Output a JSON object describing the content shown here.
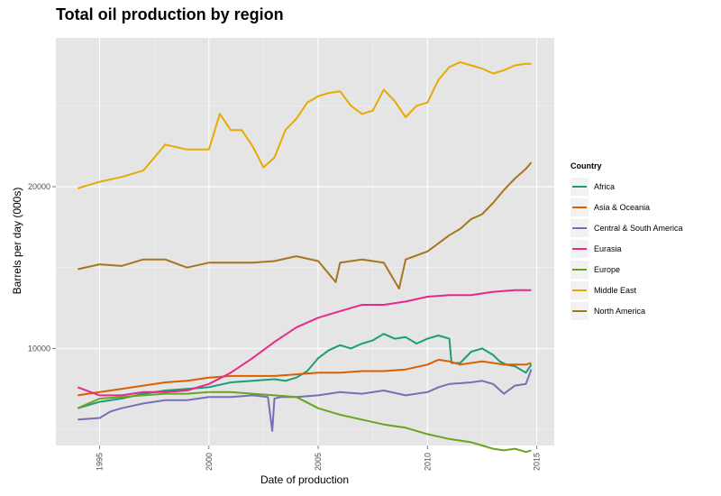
{
  "chart_data": {
    "type": "line",
    "title": "Total oil production by region",
    "xlabel": "Date of production",
    "ylabel": "Barrels per day (000s)",
    "xlim": [
      1993.0,
      2015.8
    ],
    "ylim": [
      4000,
      29200
    ],
    "x_ticks": [
      1995,
      2000,
      2005,
      2010,
      2015
    ],
    "x_tick_labels": [
      "1995",
      "2000",
      "2005",
      "2010",
      "2015"
    ],
    "y_ticks": [
      10000,
      20000
    ],
    "y_tick_labels": [
      "10000",
      "20000"
    ],
    "grid": true,
    "legend": {
      "title": "Country",
      "position": "right"
    },
    "series": [
      {
        "name": "Africa",
        "color": "#1b9e77",
        "x": [
          1994.0,
          1995.0,
          1996.0,
          1997.0,
          1998.0,
          1999.0,
          2000.0,
          2001.0,
          2002.0,
          2003.0,
          2003.5,
          2004.0,
          2004.5,
          2005.0,
          2005.5,
          2006.0,
          2006.5,
          2007.0,
          2007.5,
          2008.0,
          2008.5,
          2009.0,
          2009.5,
          2010.0,
          2010.5,
          2011.0,
          2011.1,
          2011.5,
          2012.0,
          2012.5,
          2013.0,
          2013.3,
          2013.6,
          2014.0,
          2014.5,
          2014.75
        ],
        "y": [
          6300,
          6700,
          6900,
          7200,
          7400,
          7500,
          7600,
          7900,
          8000,
          8100,
          8000,
          8200,
          8600,
          9400,
          9900,
          10200,
          10000,
          10300,
          10500,
          10900,
          10600,
          10700,
          10300,
          10600,
          10800,
          10600,
          9100,
          9100,
          9800,
          10000,
          9600,
          9200,
          9000,
          8900,
          8500,
          9000
        ]
      },
      {
        "name": "Asia & Oceania",
        "color": "#d95f02",
        "x": [
          1994.0,
          1995.0,
          1996.0,
          1997.0,
          1998.0,
          1999.0,
          2000.0,
          2001.0,
          2002.0,
          2003.0,
          2004.0,
          2005.0,
          2006.0,
          2007.0,
          2008.0,
          2009.0,
          2010.0,
          2010.5,
          2011.0,
          2011.5,
          2012.0,
          2012.5,
          2013.0,
          2013.5,
          2014.0,
          2014.5,
          2014.75
        ],
        "y": [
          7100,
          7300,
          7500,
          7700,
          7900,
          8000,
          8200,
          8300,
          8300,
          8300,
          8400,
          8500,
          8500,
          8600,
          8600,
          8700,
          9000,
          9300,
          9200,
          9000,
          9100,
          9200,
          9100,
          9000,
          9000,
          9000,
          9100
        ]
      },
      {
        "name": "Central & South America",
        "color": "#7570b3",
        "x": [
          1994.0,
          1995.0,
          1995.5,
          1996.0,
          1997.0,
          1998.0,
          1999.0,
          2000.0,
          2001.0,
          2002.0,
          2002.7,
          2002.9,
          2003.0,
          2003.3,
          2004.0,
          2005.0,
          2006.0,
          2007.0,
          2008.0,
          2009.0,
          2010.0,
          2010.5,
          2011.0,
          2012.0,
          2012.5,
          2013.0,
          2013.5,
          2014.0,
          2014.5,
          2014.75
        ],
        "y": [
          5600,
          5700,
          6100,
          6300,
          6600,
          6800,
          6800,
          7000,
          7000,
          7100,
          7000,
          4900,
          6900,
          7000,
          7000,
          7100,
          7300,
          7200,
          7400,
          7100,
          7300,
          7600,
          7800,
          7900,
          8000,
          7800,
          7200,
          7700,
          7800,
          8700
        ]
      },
      {
        "name": "Eurasia",
        "color": "#e7298a",
        "x": [
          1994.0,
          1995.0,
          1996.0,
          1997.0,
          1998.0,
          1999.0,
          2000.0,
          2001.0,
          2002.0,
          2003.0,
          2004.0,
          2005.0,
          2006.0,
          2007.0,
          2008.0,
          2009.0,
          2010.0,
          2011.0,
          2012.0,
          2013.0,
          2014.0,
          2014.75
        ],
        "y": [
          7600,
          7100,
          7100,
          7300,
          7300,
          7400,
          7800,
          8500,
          9400,
          10400,
          11300,
          11900,
          12300,
          12700,
          12700,
          12900,
          13200,
          13300,
          13300,
          13500,
          13600,
          13600
        ]
      },
      {
        "name": "Europe",
        "color": "#66a61e",
        "x": [
          1994.0,
          1995.0,
          1996.0,
          1997.0,
          1998.0,
          1999.0,
          2000.0,
          2001.0,
          2002.0,
          2003.0,
          2004.0,
          2005.0,
          2006.0,
          2007.0,
          2008.0,
          2009.0,
          2010.0,
          2011.0,
          2012.0,
          2012.5,
          2013.0,
          2013.5,
          2014.0,
          2014.5,
          2014.75
        ],
        "y": [
          6300,
          6900,
          7000,
          7100,
          7200,
          7200,
          7300,
          7300,
          7200,
          7100,
          7000,
          6300,
          5900,
          5600,
          5300,
          5100,
          4700,
          4400,
          4200,
          4000,
          3800,
          3700,
          3800,
          3600,
          3700
        ]
      },
      {
        "name": "Middle East",
        "color": "#e6ab02",
        "x": [
          1994.0,
          1995.0,
          1996.0,
          1997.0,
          1998.0,
          1999.0,
          2000.0,
          2000.5,
          2001.0,
          2001.5,
          2002.0,
          2002.5,
          2003.0,
          2003.5,
          2004.0,
          2004.5,
          2005.0,
          2005.5,
          2006.0,
          2006.5,
          2007.0,
          2007.5,
          2008.0,
          2008.5,
          2009.0,
          2009.5,
          2010.0,
          2010.5,
          2011.0,
          2011.5,
          2012.0,
          2012.5,
          2013.0,
          2013.5,
          2014.0,
          2014.5,
          2014.75
        ],
        "y": [
          19900,
          20300,
          20600,
          21000,
          22600,
          22300,
          22300,
          24500,
          23500,
          23500,
          22500,
          21200,
          21800,
          23500,
          24200,
          25200,
          25600,
          25800,
          25900,
          25000,
          24500,
          24700,
          26000,
          25300,
          24300,
          25000,
          25200,
          26600,
          27400,
          27700,
          27500,
          27300,
          27000,
          27200,
          27500,
          27600,
          27600
        ]
      },
      {
        "name": "North America",
        "color": "#a6761d",
        "x": [
          1994.0,
          1995.0,
          1996.0,
          1997.0,
          1998.0,
          1999.0,
          2000.0,
          2001.0,
          2002.0,
          2003.0,
          2004.0,
          2005.0,
          2005.8,
          2006.0,
          2007.0,
          2008.0,
          2008.7,
          2009.0,
          2010.0,
          2010.5,
          2011.0,
          2011.5,
          2012.0,
          2012.5,
          2013.0,
          2013.5,
          2014.0,
          2014.5,
          2014.75
        ],
        "y": [
          14900,
          15200,
          15100,
          15500,
          15500,
          15000,
          15300,
          15300,
          15300,
          15400,
          15700,
          15400,
          14100,
          15300,
          15500,
          15300,
          13700,
          15500,
          16000,
          16500,
          17000,
          17400,
          18000,
          18300,
          19000,
          19800,
          20500,
          21100,
          21500
        ]
      }
    ]
  }
}
